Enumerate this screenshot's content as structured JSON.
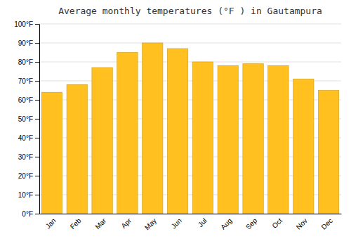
{
  "chart_data": {
    "type": "bar",
    "title": "Average monthly temperatures (°F ) in Gautampura",
    "categories": [
      "Jan",
      "Feb",
      "Mar",
      "Apr",
      "May",
      "Jun",
      "Jul",
      "Aug",
      "Sep",
      "Oct",
      "Nov",
      "Dec"
    ],
    "values": [
      64,
      68,
      77,
      85,
      90,
      87,
      80,
      78,
      79,
      78,
      71,
      65
    ],
    "color": "#FFC020",
    "ylim": [
      0,
      100
    ],
    "yticks": [
      {
        "value": 0,
        "label": "0°F"
      },
      {
        "value": 10,
        "label": "10°F"
      },
      {
        "value": 20,
        "label": "20°F"
      },
      {
        "value": 30,
        "label": "30°F"
      },
      {
        "value": 40,
        "label": "40°F"
      },
      {
        "value": 50,
        "label": "50°F"
      },
      {
        "value": 60,
        "label": "60°F"
      },
      {
        "value": 70,
        "label": "70°F"
      },
      {
        "value": 80,
        "label": "80°F"
      },
      {
        "value": 90,
        "label": "90°F"
      },
      {
        "value": 100,
        "label": "100°F"
      }
    ],
    "grid": true
  }
}
